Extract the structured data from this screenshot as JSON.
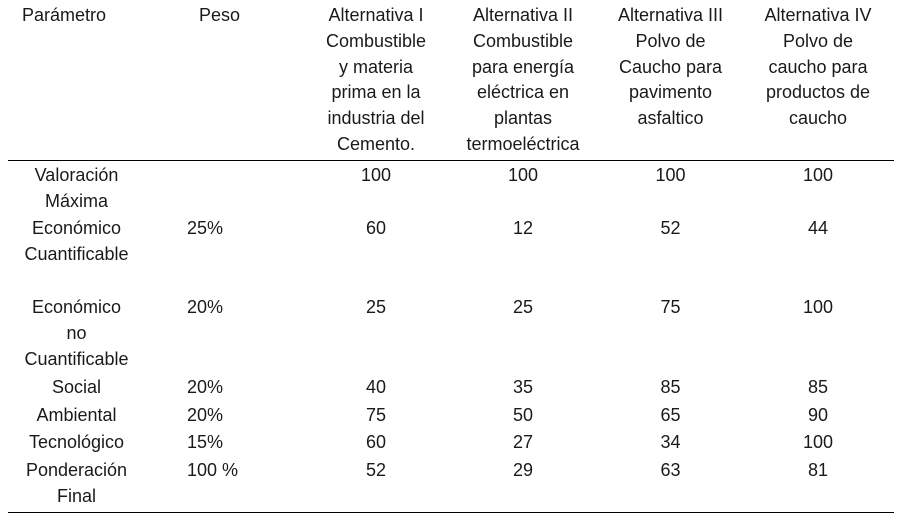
{
  "table": {
    "headers": {
      "parametro": "Parámetro",
      "peso": "Peso",
      "alt1": [
        "Alternativa I",
        "Combustible",
        "y materia",
        "prima en la",
        "industria del",
        "Cemento."
      ],
      "alt2": [
        "Alternativa II",
        "Combustible",
        "para energía",
        "eléctrica en",
        "plantas",
        "termoeléctrica"
      ],
      "alt3": [
        "Alternativa III",
        "Polvo de",
        "Caucho para",
        "pavimento",
        "asfaltico"
      ],
      "alt4": [
        "Alternativa IV",
        "Polvo de",
        "caucho para",
        "productos de",
        "caucho"
      ]
    },
    "rows": [
      {
        "param": [
          "Valoración",
          "Máxima"
        ],
        "peso": "",
        "a1": "100",
        "a2": "100",
        "a3": "100",
        "a4": "100"
      },
      {
        "param": [
          "Económico",
          "Cuantificable"
        ],
        "peso": "25%",
        "a1": "60",
        "a2": "12",
        "a3": "52",
        "a4": "44"
      },
      {
        "param": [
          "Económico",
          "no",
          "Cuantificable"
        ],
        "peso": "20%",
        "a1": "25",
        "a2": "25",
        "a3": "75",
        "a4": "100"
      },
      {
        "param": [
          "Social"
        ],
        "peso": "20%",
        "a1": "40",
        "a2": "35",
        "a3": "85",
        "a4": "85"
      },
      {
        "param": [
          "Ambiental"
        ],
        "peso": "20%",
        "a1": "75",
        "a2": "50",
        "a3": "65",
        "a4": "90"
      },
      {
        "param": [
          "Tecnológico"
        ],
        "peso": "15%",
        "a1": "60",
        "a2": "27",
        "a3": "34",
        "a4": "100"
      },
      {
        "param": [
          "Ponderación",
          "Final"
        ],
        "peso": "100 %",
        "a1": "52",
        "a2": "29",
        "a3": "63",
        "a4": "81"
      }
    ]
  }
}
